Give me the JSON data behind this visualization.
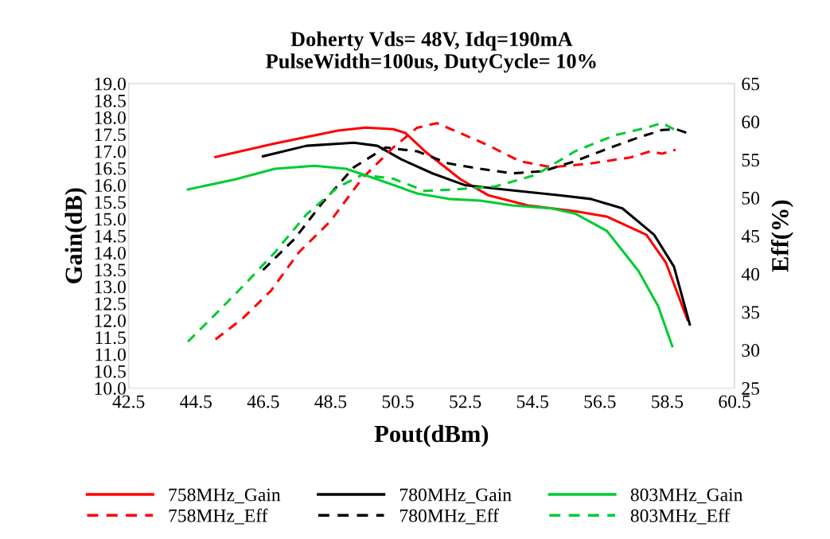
{
  "chart_data": {
    "type": "line",
    "title": "Doherty Vds= 48V, Idq=190mA\nPulseWidth=100us, DutyCycle= 10%",
    "xlabel": "Pout(dBm)",
    "ylabel": "Gain(dB)",
    "y2label": "Eff(%)",
    "xlim": [
      42.5,
      60.5
    ],
    "xticks": [
      42.5,
      44.5,
      46.5,
      48.5,
      50.5,
      52.5,
      54.5,
      56.5,
      58.5,
      60.5
    ],
    "ylim": [
      10.0,
      19.0
    ],
    "yticks": [
      {
        "value": 10,
        "label": "10.0"
      },
      10.5,
      {
        "value": 11,
        "label": "11.0"
      },
      11.5,
      {
        "value": 12,
        "label": "12.0"
      },
      12.5,
      {
        "value": 13,
        "label": "13.0"
      },
      13.5,
      {
        "value": 14,
        "label": "14.0"
      },
      14.5,
      {
        "value": 15,
        "label": "15.0"
      },
      15.5,
      {
        "value": 16,
        "label": "16.0"
      },
      16.5,
      {
        "value": 17,
        "label": "17.0"
      },
      17.5,
      {
        "value": 18,
        "label": "18.0"
      },
      18.5,
      {
        "value": 19,
        "label": "19.0"
      }
    ],
    "y2lim": [
      25,
      65
    ],
    "y2ticks": [
      25,
      30,
      35,
      40,
      45,
      50,
      55,
      60,
      65
    ],
    "grid": false,
    "legend": "bottom",
    "marker": "none",
    "series": [
      {
        "name": "758MHz_Gain",
        "color": "#ff0000",
        "line_style": "solid",
        "x": [
          45.08,
          46.84,
          48.72,
          49.54,
          50.36,
          50.72,
          51.3,
          52.36,
          53.18,
          54.35,
          55.76,
          56.7,
          57.88,
          58.46,
          59.1
        ],
        "values": [
          16.83,
          17.23,
          17.61,
          17.7,
          17.65,
          17.54,
          17.0,
          16.17,
          15.7,
          15.4,
          15.23,
          15.07,
          14.53,
          13.71,
          12.02
        ]
      },
      {
        "name": "758MHz_Eff",
        "color": "#ff0000",
        "line_style": "dashed",
        "axis": "y2",
        "x": [
          45.08,
          45.9,
          46.73,
          47.55,
          48.49,
          49.43,
          50.36,
          51.07,
          51.66,
          52.24,
          53.18,
          54.12,
          55.06,
          56.23,
          57.41,
          58.0,
          58.35,
          58.75
        ],
        "values": [
          31.4,
          34.2,
          37.8,
          42.8,
          46.9,
          52.5,
          56.6,
          59.2,
          59.8,
          58.7,
          56.9,
          54.8,
          54.0,
          54.5,
          55.3,
          56.1,
          55.8,
          56.3
        ]
      },
      {
        "name": "780MHz_Gain",
        "color": "#000000",
        "line_style": "solid",
        "x": [
          46.49,
          47.78,
          49.19,
          49.89,
          50.6,
          51.54,
          52.48,
          53.65,
          55.29,
          56.23,
          57.17,
          58.11,
          58.7,
          59.17
        ],
        "values": [
          16.85,
          17.16,
          17.25,
          17.16,
          16.76,
          16.34,
          16.0,
          15.87,
          15.7,
          15.59,
          15.31,
          14.53,
          13.59,
          11.88
        ]
      },
      {
        "name": "780MHz_Eff",
        "color": "#000000",
        "line_style": "dashed",
        "axis": "y2",
        "x": [
          46.49,
          47.43,
          48.25,
          49.19,
          50.13,
          51.07,
          52.01,
          52.95,
          53.89,
          54.82,
          55.76,
          56.7,
          57.64,
          58.35,
          58.77,
          59.1
        ],
        "values": [
          40.5,
          44.6,
          49.3,
          54.0,
          56.6,
          56.1,
          54.5,
          53.8,
          53.2,
          53.5,
          54.8,
          56.4,
          57.9,
          58.9,
          59.0,
          58.5
        ]
      },
      {
        "name": "803MHz_Gain",
        "color": "#00cc33",
        "line_style": "solid",
        "x": [
          44.26,
          45.67,
          46.84,
          48.02,
          48.96,
          49.89,
          51.07,
          52.01,
          52.95,
          53.89,
          55.06,
          55.76,
          56.7,
          57.64,
          58.23,
          58.65
        ],
        "values": [
          15.87,
          16.17,
          16.48,
          16.57,
          16.48,
          16.17,
          15.75,
          15.59,
          15.54,
          15.4,
          15.31,
          15.16,
          14.65,
          13.47,
          12.42,
          11.24
        ]
      },
      {
        "name": "803MHz_Eff",
        "color": "#00cc33",
        "line_style": "dashed",
        "axis": "y2",
        "x": [
          44.26,
          45.08,
          45.9,
          46.84,
          47.78,
          48.72,
          49.43,
          50.36,
          51.3,
          52.24,
          53.41,
          54.59,
          55.76,
          56.94,
          57.88,
          58.35,
          58.7
        ],
        "values": [
          31.1,
          34.7,
          38.4,
          42.8,
          47.8,
          51.4,
          53.0,
          52.5,
          50.9,
          51.1,
          51.5,
          53.0,
          56.1,
          58.2,
          59.2,
          59.8,
          59.0
        ]
      }
    ]
  }
}
